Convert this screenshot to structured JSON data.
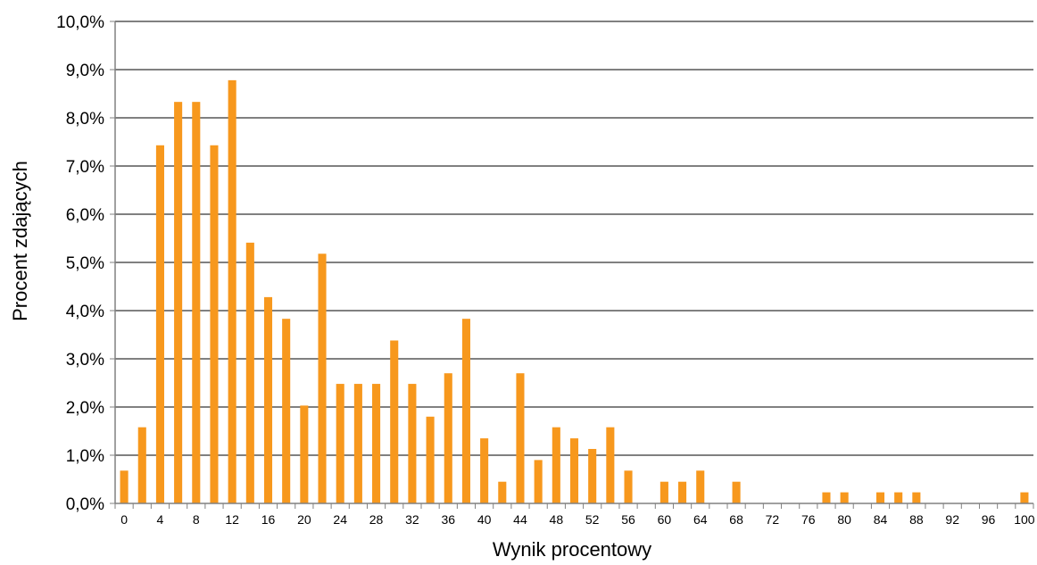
{
  "chart_data": {
    "type": "bar",
    "xlabel": "Wynik procentowy",
    "ylabel": "Procent zdających",
    "ylim": [
      0,
      10
    ],
    "y_ticks": [
      "0,0%",
      "1,0%",
      "2,0%",
      "3,0%",
      "4,0%",
      "5,0%",
      "6,0%",
      "7,0%",
      "8,0%",
      "9,0%",
      "10,0%"
    ],
    "categories": [
      "0",
      "2",
      "4",
      "6",
      "8",
      "10",
      "12",
      "14",
      "16",
      "18",
      "20",
      "22",
      "24",
      "26",
      "28",
      "30",
      "32",
      "34",
      "36",
      "38",
      "40",
      "42",
      "44",
      "46",
      "48",
      "50",
      "52",
      "54",
      "56",
      "58",
      "60",
      "62",
      "64",
      "66",
      "68",
      "70",
      "72",
      "74",
      "76",
      "78",
      "80",
      "82",
      "84",
      "86",
      "88",
      "90",
      "92",
      "94",
      "96",
      "98",
      "100"
    ],
    "x_tick_labels": [
      "0",
      "4",
      "8",
      "12",
      "16",
      "20",
      "24",
      "28",
      "32",
      "36",
      "40",
      "44",
      "48",
      "52",
      "56",
      "60",
      "64",
      "68",
      "72",
      "76",
      "80",
      "84",
      "88",
      "92",
      "96",
      "100"
    ],
    "values": [
      0.68,
      1.58,
      7.43,
      8.33,
      8.33,
      7.43,
      8.78,
      5.41,
      4.28,
      3.83,
      2.03,
      5.18,
      2.48,
      2.48,
      2.48,
      3.38,
      2.48,
      1.8,
      2.7,
      3.83,
      1.35,
      0.45,
      2.7,
      0.9,
      1.58,
      1.35,
      1.13,
      1.58,
      0.68,
      0,
      0.45,
      0.45,
      0.68,
      0,
      0.45,
      0,
      0,
      0,
      0,
      0.23,
      0.23,
      0,
      0.23,
      0.23,
      0.23,
      0,
      0,
      0,
      0,
      0,
      0.23
    ],
    "grid": true,
    "legend": false,
    "colors": {
      "bar": "#F7981D",
      "gridline": "#000000",
      "axis": "#808080"
    }
  }
}
